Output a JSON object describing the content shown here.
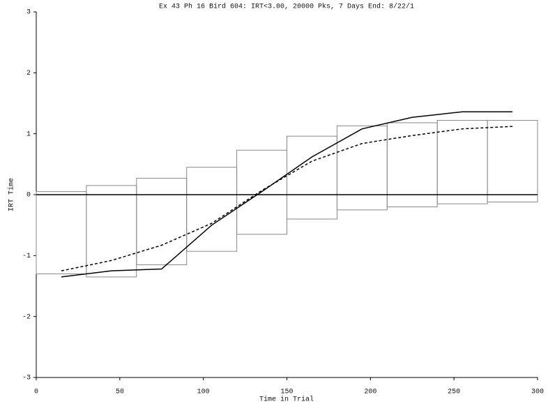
{
  "chart_data": {
    "type": "box-line",
    "title": "Ex 43 Ph 16 Bird 604: IRT<3.00, 20000 Pks, 7 Days End: 8/22/1",
    "xlabel": "Time in Trial",
    "ylabel": "IRT Time",
    "xlim": [
      0,
      300
    ],
    "ylim": [
      -3,
      3
    ],
    "xticks": [
      0,
      50,
      100,
      150,
      200,
      250,
      300
    ],
    "yticks": [
      -3,
      -2,
      -1,
      0,
      1,
      2,
      3
    ],
    "hline": 0,
    "boxes": {
      "color": "#888888",
      "x0": [
        0,
        30,
        60,
        90,
        120,
        150,
        180,
        210,
        240,
        270
      ],
      "x1": [
        30,
        60,
        90,
        120,
        150,
        180,
        210,
        240,
        270,
        300
      ],
      "top": [
        0.05,
        0.15,
        0.27,
        0.45,
        0.73,
        0.96,
        1.13,
        1.18,
        1.22,
        1.22
      ],
      "bottom": [
        -1.3,
        -1.35,
        -1.15,
        -0.93,
        -0.65,
        -0.4,
        -0.25,
        -0.2,
        -0.15,
        -0.12
      ]
    },
    "x": [
      15,
      45,
      75,
      105,
      135,
      165,
      195,
      225,
      255,
      285
    ],
    "series": [
      {
        "color": "#000000",
        "dash": false,
        "values": [
          -1.35,
          -1.25,
          -1.22,
          -0.5,
          0.05,
          0.62,
          1.08,
          1.27,
          1.36,
          1.36
        ]
      },
      {
        "color": "#000000",
        "dash": true,
        "values": [
          -1.25,
          -1.08,
          -0.83,
          -0.47,
          0.07,
          0.55,
          0.84,
          0.97,
          1.08,
          1.12
        ]
      }
    ]
  }
}
